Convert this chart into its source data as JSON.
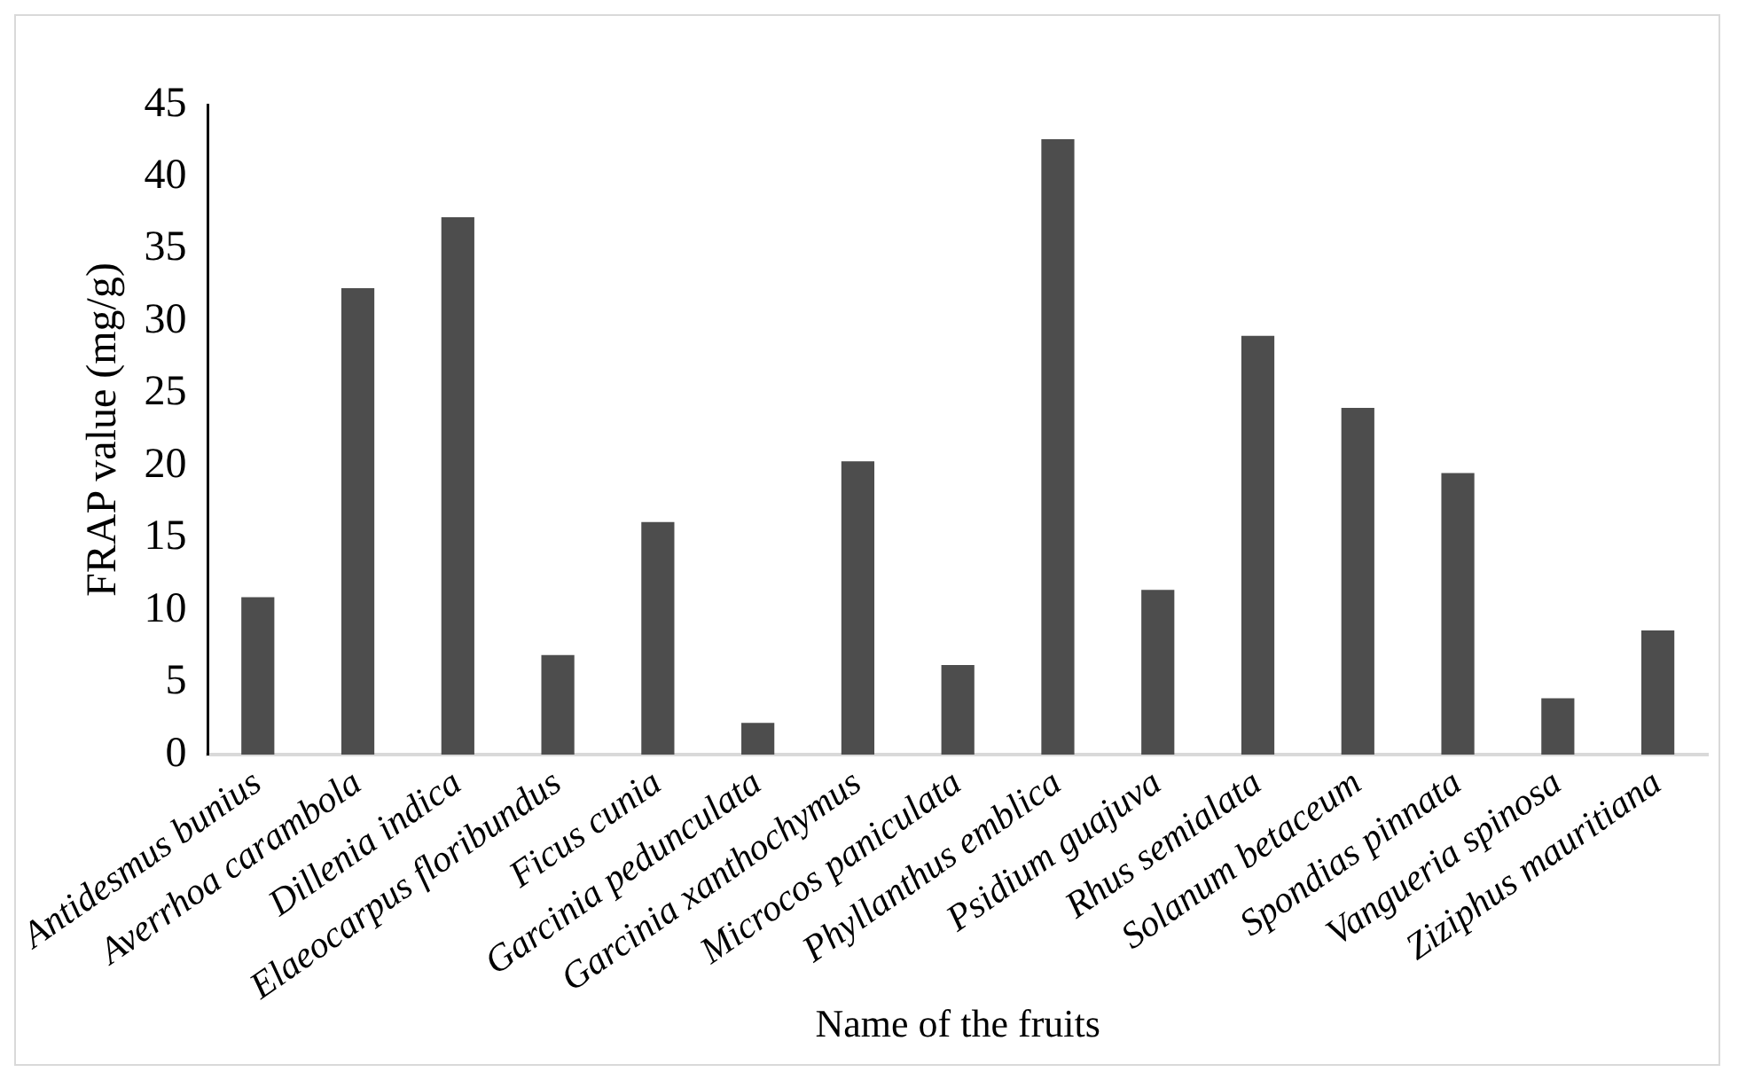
{
  "chart_data": {
    "type": "bar",
    "xlabel": "Name of the fruits",
    "ylabel": "FRAP value (mg/g)",
    "categories": [
      "Antidesmus bunius",
      "Averrhoa carambola",
      "Dillenia indica",
      "Elaeocarpus floribundus",
      "Ficus cunia",
      "Garcinia pedunculata",
      "Garcinia xanthochymus",
      "Microcos paniculata",
      "Phyllanthus emblica",
      "Psidium guajuva",
      "Rhus semialata",
      "Solanum betaceum",
      "Spondias pinnata",
      "Vangueria spinosa",
      "Ziziphus mauritiana"
    ],
    "values": [
      10.9,
      32.3,
      37.2,
      6.9,
      16.1,
      2.2,
      20.3,
      6.2,
      42.6,
      11.4,
      29.0,
      24.0,
      19.5,
      3.9,
      8.6
    ],
    "color": "#4d4d4d",
    "ylim": [
      0,
      45
    ],
    "yticks": [
      0,
      5,
      10,
      15,
      20,
      25,
      30,
      35,
      40,
      45
    ],
    "grid": false,
    "legend": false
  }
}
